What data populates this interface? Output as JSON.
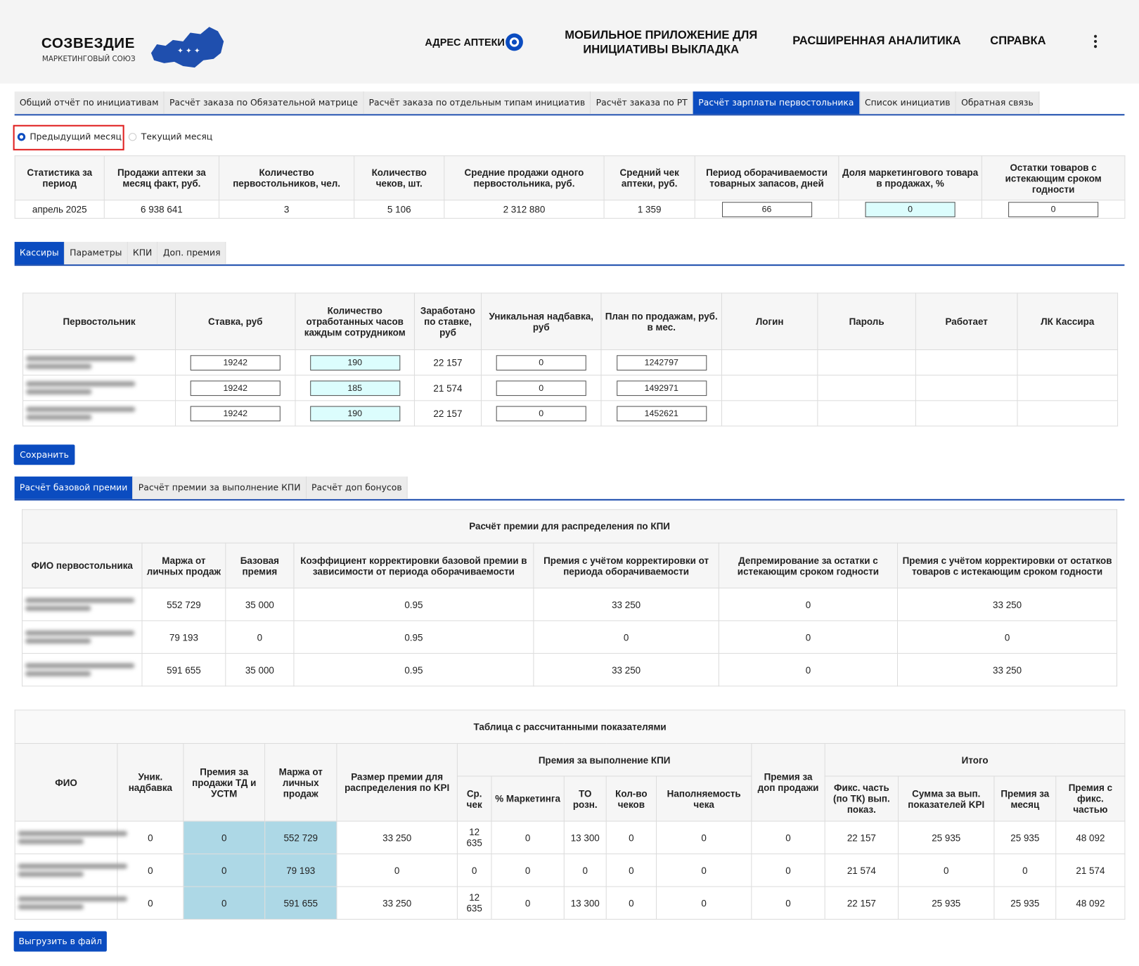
{
  "header": {
    "logo_title": "СОЗВЕЗДИЕ",
    "logo_subtitle": "МАРКЕТИНГОВЫЙ СОЮЗ",
    "nav": [
      "АДРЕС АПТЕКИ",
      "МОБИЛЬНОЕ ПРИЛОЖЕНИЕ ДЛЯ ИНИЦИАТИВЫ ВЫКЛАДКА",
      "РАСШИРЕННАЯ АНАЛИТИКА",
      "СПРАВКА"
    ]
  },
  "tabs": {
    "items": [
      "Общий отчёт по инициативам",
      "Расчёт заказа по Обязательной матрице",
      "Расчёт заказа по отдельным типам инициатив",
      "Расчёт заказа по РТ",
      "Расчёт зарплаты первостольника",
      "Список инициатив",
      "Обратная связь"
    ],
    "active": 4
  },
  "period": {
    "options": [
      "Предыдущий месяц",
      "Текущий месяц"
    ],
    "selected": 0
  },
  "stats": {
    "headers": [
      "Статистика за период",
      "Продажи аптеки за месяц факт, руб.",
      "Количество первостольников, чел.",
      "Количество чеков, шт.",
      "Средние продажи одного первостольника, руб.",
      "Средний чек аптеки, руб.",
      "Период оборачиваемости товарных запасов, дней",
      "Доля маркетингового товара в продажах, %",
      "Остатки товаров с истекающим сроком годности"
    ],
    "rows": [
      [
        "апрель 2025",
        "6 938 641",
        "3",
        "5 106",
        "2 312 880",
        "1 359",
        "66",
        "0",
        "0"
      ]
    ]
  },
  "subtabs": {
    "items": [
      "Кассиры",
      "Параметры",
      "КПИ",
      "Доп. премия"
    ],
    "active": 0
  },
  "cashiers": {
    "headers": [
      "Первостольник",
      "Ставка, руб",
      "Количество отработанных часов каждым сотрудником",
      "Заработано по ставке, руб",
      "Уникальная надбавка, руб",
      "План по продажам, руб. в мес.",
      "Логин",
      "Пароль",
      "Работает",
      "ЛК Кассира"
    ],
    "rows": [
      [
        "19242",
        "190",
        "22 157",
        "0",
        "1242797"
      ],
      [
        "19242",
        "185",
        "21 574",
        "0",
        "1492971"
      ],
      [
        "19242",
        "190",
        "22 157",
        "0",
        "1452621"
      ]
    ]
  },
  "save_button": "Сохранить",
  "bonus_tabs": {
    "items": [
      "Расчёт базовой премии",
      "Расчёт премии за выполнение КПИ",
      "Расчёт доп бонусов"
    ],
    "active": 0
  },
  "bonus": {
    "title": "Расчёт премии для распределения по КПИ",
    "headers": [
      "ФИО первостольника",
      "Маржа от личных продаж",
      "Базовая премия",
      "Коэффициент корректировки базовой премии в зависимости от периода оборачиваемости",
      "Премия с учётом корректировки от периода оборачиваемости",
      "Депремирование за остатки с истекающим сроком годности",
      "Премия с учётом корректировки от остатков товаров с истекающим сроком годности"
    ],
    "rows": [
      [
        "552 729",
        "35 000",
        "0.95",
        "33 250",
        "0",
        "33 250"
      ],
      [
        "79 193",
        "0",
        "0.95",
        "0",
        "0",
        "0"
      ],
      [
        "591 655",
        "35 000",
        "0.95",
        "33 250",
        "0",
        "33 250"
      ]
    ]
  },
  "calc": {
    "title": "Таблица с рассчитанными показателями",
    "headers": [
      "ФИО",
      "Уник. надбавка",
      "Премия за продажи ТД и УСТМ",
      "Маржа от личных продаж",
      "Размер премии для распределения по KPI",
      {
        "label": "Премия за выполнение КПИ",
        "sub": [
          "Ср. чек",
          "% Маркетинга",
          "ТО розн.",
          "Кол-во чеков",
          "Наполняемость чека"
        ]
      },
      "Премия за доп продажи",
      {
        "label": "Итого",
        "sub": [
          "Фикс. часть (по ТК) вып. показ.",
          "Сумма за вып. показателей KPI",
          "Премия за месяц",
          "Премия с фикс. частью"
        ]
      }
    ],
    "rows": [
      [
        "0",
        "0",
        "552 729",
        "33 250",
        "12 635",
        "0",
        "13 300",
        "0",
        "0",
        "0",
        "22 157",
        "25 935",
        "25 935",
        "48 092"
      ],
      [
        "0",
        "0",
        "79 193",
        "0",
        "0",
        "0",
        "0",
        "0",
        "0",
        "0",
        "21 574",
        "0",
        "0",
        "21 574"
      ],
      [
        "0",
        "0",
        "591 655",
        "33 250",
        "12 635",
        "0",
        "13 300",
        "0",
        "0",
        "0",
        "22 157",
        "25 935",
        "25 935",
        "48 092"
      ]
    ]
  },
  "export_button": "Выгрузить в файл"
}
